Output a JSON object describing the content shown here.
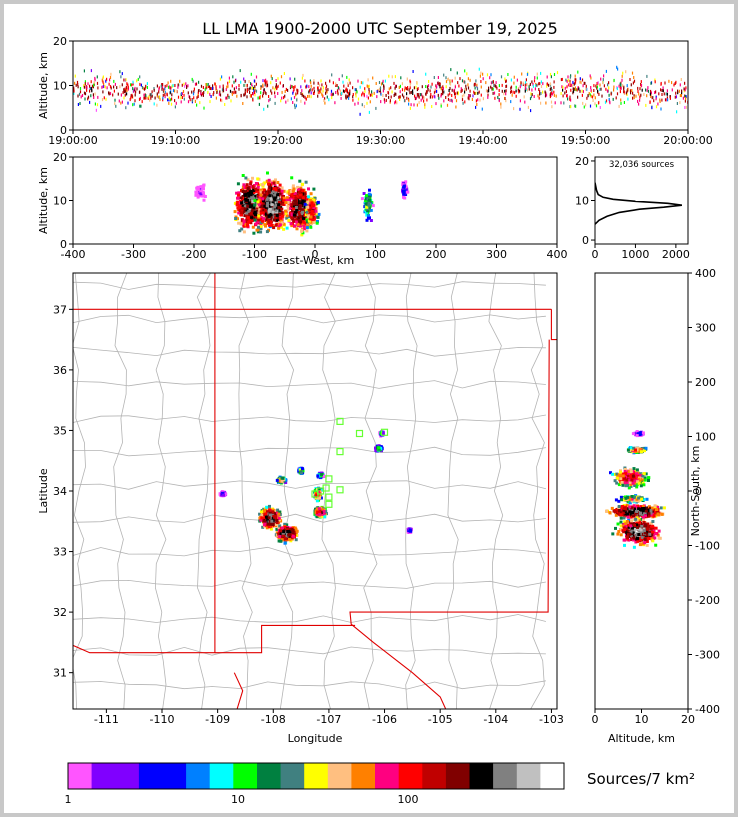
{
  "title": "LL LMA 1900-2000 UTC September 19, 2025",
  "colors": {
    "frame": "#c8c8c8",
    "border_red": "#e00000",
    "county_gray": "#b4b4b4",
    "station_green": "#66ff33"
  },
  "chart_data": [
    {
      "type": "scatter",
      "id": "time-height",
      "ylabel": "Altitude, km",
      "xlim": [
        "19:00:00",
        "20:00:00"
      ],
      "ylim": [
        0,
        20
      ],
      "xticks": [
        "19:00:00",
        "19:10:00",
        "19:20:00",
        "19:30:00",
        "19:40:00",
        "19:50:00",
        "20:00:00"
      ],
      "yticks": [
        0,
        10,
        20
      ],
      "activity_km": [
        {
          "minute": 0,
          "center": 9,
          "spread": 4
        },
        {
          "minute": 10,
          "center": 8.5,
          "spread": 3.5
        },
        {
          "minute": 20,
          "center": 9,
          "spread": 4
        },
        {
          "minute": 30,
          "center": 8.5,
          "spread": 4
        },
        {
          "minute": 40,
          "center": 9,
          "spread": 4.5
        },
        {
          "minute": 50,
          "center": 9,
          "spread": 4.5
        },
        {
          "minute": 60,
          "center": 8.5,
          "spread": 4
        }
      ]
    },
    {
      "type": "heatmap",
      "id": "ew-height",
      "xlabel": "East-West, km",
      "ylabel": "Altitude, km",
      "xlim": [
        -400,
        400
      ],
      "ylim": [
        0,
        20
      ],
      "xticks": [
        -400,
        -300,
        -200,
        -100,
        0,
        100,
        200,
        300,
        400
      ],
      "yticks": [
        0,
        10,
        20
      ],
      "clusters": [
        {
          "x": -105,
          "z": 9,
          "wx": 22,
          "wz": 5,
          "peak": 200
        },
        {
          "x": -70,
          "z": 9,
          "wx": 20,
          "wz": 5,
          "peak": 220
        },
        {
          "x": -25,
          "z": 8.5,
          "wx": 20,
          "wz": 4.5,
          "peak": 170
        },
        {
          "x": -5,
          "z": 7.5,
          "wx": 8,
          "wz": 3,
          "peak": 90
        },
        {
          "x": 88,
          "z": 9,
          "wx": 6,
          "wz": 3,
          "peak": 20
        },
        {
          "x": 148,
          "z": 12.5,
          "wx": 4,
          "wz": 1.5,
          "peak": 5
        },
        {
          "x": -190,
          "z": 12,
          "wx": 8,
          "wz": 1.5,
          "peak": 2
        }
      ]
    },
    {
      "type": "line",
      "id": "altitude-histogram",
      "annotation": "32,036 sources",
      "xlim": [
        0,
        2300
      ],
      "ylim": [
        -1,
        21
      ],
      "xticks": [
        0,
        1000,
        2000
      ],
      "yticks": [
        0,
        10,
        20
      ],
      "points": [
        [
          0,
          4
        ],
        [
          100,
          5
        ],
        [
          300,
          6
        ],
        [
          600,
          7
        ],
        [
          1100,
          7.8
        ],
        [
          1700,
          8.3
        ],
        [
          2150,
          8.8
        ],
        [
          1800,
          9.3
        ],
        [
          1000,
          9.8
        ],
        [
          450,
          10.3
        ],
        [
          200,
          10.8
        ],
        [
          80,
          11.5
        ],
        [
          40,
          12.5
        ],
        [
          20,
          13.5
        ],
        [
          0,
          14.5
        ]
      ]
    },
    {
      "type": "heatmap",
      "id": "plan-map",
      "xlabel": "Longitude",
      "ylabel": "Latitude",
      "xlim": [
        -111.6,
        -102.9
      ],
      "ylim": [
        30.4,
        37.6
      ],
      "xticks": [
        -111,
        -110,
        -109,
        -108,
        -107,
        -106,
        -105,
        -104,
        -103
      ],
      "yticks": [
        31,
        32,
        33,
        34,
        35,
        36,
        37
      ],
      "clusters": [
        {
          "lon": -108.05,
          "lat": 33.55,
          "wx": 0.15,
          "wy": 0.13,
          "peak": 200
        },
        {
          "lon": -107.75,
          "lat": 33.3,
          "wx": 0.15,
          "wy": 0.1,
          "peak": 220
        },
        {
          "lon": -107.85,
          "lat": 34.18,
          "wx": 0.06,
          "wy": 0.04,
          "peak": 40
        },
        {
          "lon": -107.5,
          "lat": 34.33,
          "wx": 0.04,
          "wy": 0.04,
          "peak": 20
        },
        {
          "lon": -107.15,
          "lat": 34.26,
          "wx": 0.05,
          "wy": 0.03,
          "peak": 15
        },
        {
          "lon": -107.2,
          "lat": 33.95,
          "wx": 0.05,
          "wy": 0.08,
          "peak": 70
        },
        {
          "lon": -107.15,
          "lat": 33.65,
          "wx": 0.08,
          "wy": 0.06,
          "peak": 130
        },
        {
          "lon": -106.1,
          "lat": 34.7,
          "wx": 0.05,
          "wy": 0.04,
          "peak": 15
        },
        {
          "lon": -106.05,
          "lat": 34.95,
          "wx": 0.03,
          "wy": 0.03,
          "peak": 8
        },
        {
          "lon": -105.55,
          "lat": 33.35,
          "wx": 0.03,
          "wy": 0.03,
          "peak": 5
        },
        {
          "lon": -108.9,
          "lat": 33.95,
          "wx": 0.05,
          "wy": 0.03,
          "peak": 4
        }
      ],
      "stations": [
        [
          -106.8,
          35.15
        ],
        [
          -106.45,
          34.95
        ],
        [
          -106.0,
          34.97
        ],
        [
          -106.8,
          34.65
        ],
        [
          -107.0,
          34.2
        ],
        [
          -107.05,
          34.05
        ],
        [
          -107.15,
          34.0
        ],
        [
          -106.8,
          34.02
        ],
        [
          -107.0,
          33.9
        ],
        [
          -107.0,
          33.78
        ],
        [
          -107.25,
          33.95
        ]
      ]
    },
    {
      "type": "heatmap",
      "id": "ns-height",
      "xlabel": "Altitude, km",
      "ylabel": "North-South, km",
      "xlim": [
        0,
        20
      ],
      "ylim": [
        -400,
        400
      ],
      "xticks": [
        0,
        10,
        20
      ],
      "yticks": [
        -400,
        -300,
        -200,
        -100,
        0,
        100,
        200,
        300,
        400
      ],
      "clusters": [
        {
          "z": 9,
          "y": -38,
          "wz": 5,
          "wy": 10,
          "peak": 200
        },
        {
          "z": 9.5,
          "y": -75,
          "wz": 3.5,
          "wy": 18,
          "peak": 230
        },
        {
          "z": 7.5,
          "y": 25,
          "wz": 3,
          "wy": 14,
          "peak": 90
        },
        {
          "z": 9,
          "y": 75,
          "wz": 1.8,
          "wy": 4,
          "peak": 50
        },
        {
          "z": 8,
          "y": -15,
          "wz": 2.5,
          "wy": 5,
          "peak": 40
        },
        {
          "z": 9.5,
          "y": 105,
          "wz": 1,
          "wy": 3,
          "peak": 5
        }
      ]
    }
  ],
  "colorbar": {
    "label": "Sources/7 km²",
    "ticks": [
      "1",
      "10",
      "100"
    ],
    "colors": [
      "#ff55ff",
      "#8000ff",
      "#8000ff",
      "#0000ff",
      "#0000ff",
      "#0080ff",
      "#00ffff",
      "#00ff00",
      "#008040",
      "#408080",
      "#ffff00",
      "#ffbf80",
      "#ff8000",
      "#ff0080",
      "#ff0000",
      "#c00000",
      "#800000",
      "#000000",
      "#808080",
      "#c0c0c0",
      "#ffffff"
    ]
  }
}
